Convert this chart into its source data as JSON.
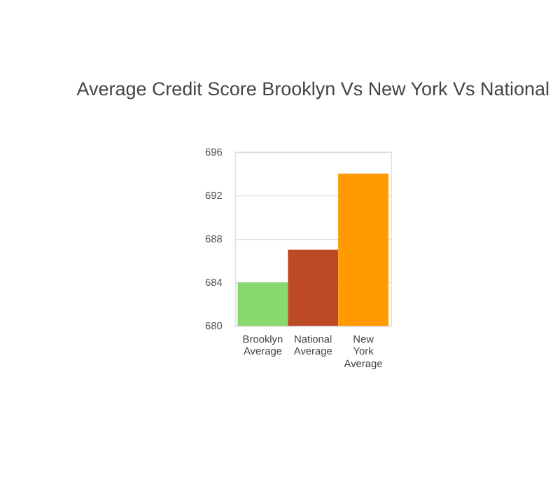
{
  "chart_data": {
    "type": "bar",
    "title": "Average Credit Score Brooklyn Vs New York Vs National",
    "categories": [
      "Brooklyn Average",
      "National Average",
      "New York Average"
    ],
    "values": [
      684,
      687,
      694
    ],
    "colors": [
      "#88d96e",
      "#bb4a25",
      "#ff9b00"
    ],
    "ylim": [
      680,
      696
    ],
    "yticks": [
      680,
      684,
      688,
      692,
      696
    ],
    "grid": "y"
  }
}
